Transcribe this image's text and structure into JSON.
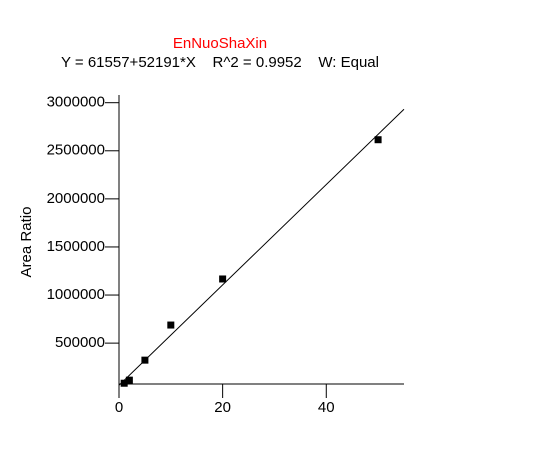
{
  "chart_data": {
    "type": "scatter",
    "title": "EnNuoShaXin",
    "title_color": "#ff0000",
    "subtitle": "Y = 61557+52191*X    R^2 = 0.9952    W: Equal",
    "y_label": "Area Ratio",
    "x": [
      1,
      2,
      5,
      10,
      20,
      50
    ],
    "values": [
      83000,
      115000,
      323000,
      688000,
      1167000,
      2615000
    ],
    "color": "#000000",
    "fit_line": {
      "x": [
        0,
        55
      ],
      "values": [
        61557,
        2932062
      ]
    },
    "xlim": [
      0,
      55
    ],
    "xticks": [
      0,
      20,
      40
    ],
    "ylim": [
      75000,
      3080000
    ],
    "yticks": [
      500000,
      1000000,
      1500000,
      2000000,
      2500000,
      3000000
    ],
    "grid": false
  }
}
